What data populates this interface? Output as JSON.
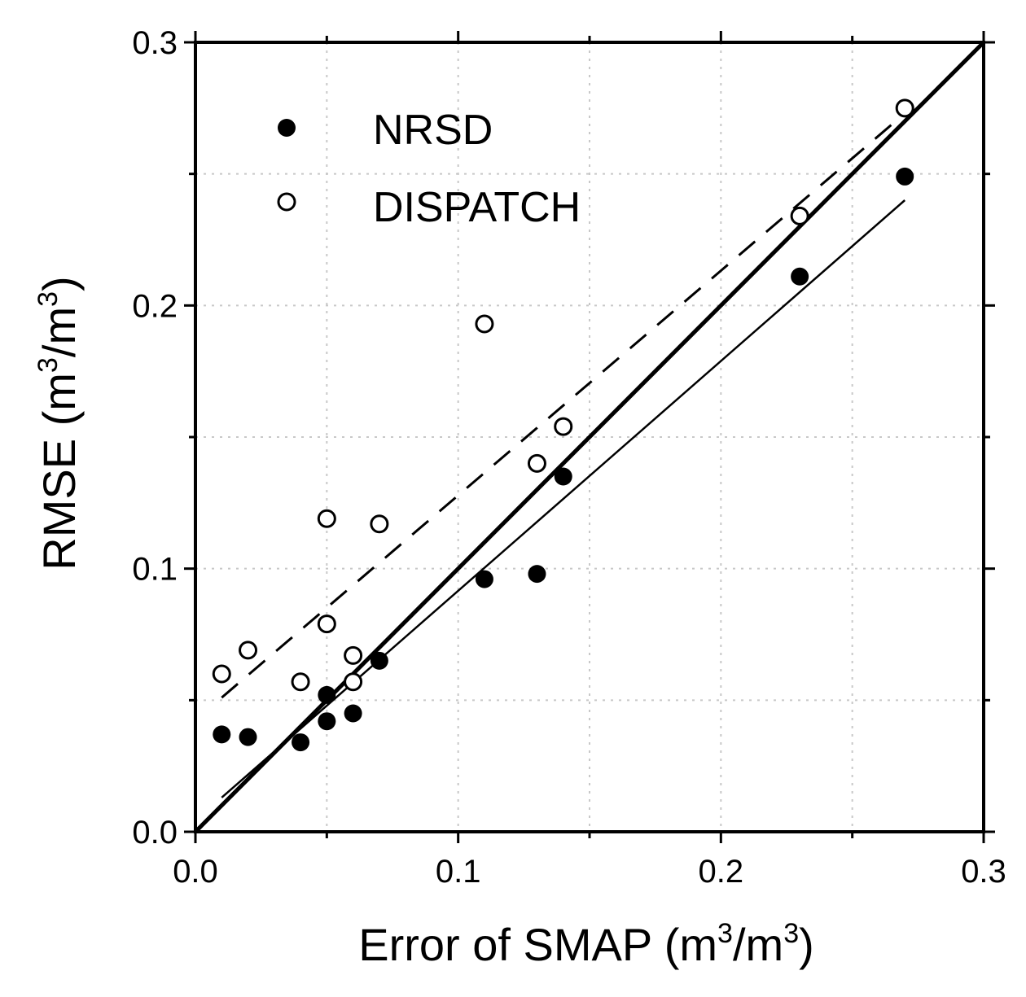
{
  "chart_data": {
    "type": "scatter",
    "xlabel_main": "Error of SMAP (m",
    "xlabel_sup1": "3",
    "xlabel_mid": "/m",
    "xlabel_sup2": "3",
    "xlabel_end": ")",
    "ylabel_main": "RMSE (m",
    "ylabel_sup1": "3",
    "ylabel_mid": "/m",
    "ylabel_sup2": "3",
    "ylabel_end": ")",
    "xlim": [
      0.0,
      0.3
    ],
    "ylim": [
      0.0,
      0.3
    ],
    "xticks": [
      "0.0",
      "0.1",
      "0.2",
      "0.3"
    ],
    "yticks": [
      "0.0",
      "0.1",
      "0.2",
      "0.3"
    ],
    "grid": "dotted",
    "legend_position": "top-left",
    "series": [
      {
        "name": "NRSD",
        "marker": "filled-circle",
        "points": [
          [
            0.01,
            0.037
          ],
          [
            0.02,
            0.036
          ],
          [
            0.04,
            0.034
          ],
          [
            0.05,
            0.042
          ],
          [
            0.05,
            0.052
          ],
          [
            0.06,
            0.045
          ],
          [
            0.07,
            0.065
          ],
          [
            0.11,
            0.096
          ],
          [
            0.13,
            0.098
          ],
          [
            0.14,
            0.135
          ],
          [
            0.23,
            0.211
          ],
          [
            0.27,
            0.249
          ]
        ],
        "fit": {
          "style": "solid-thin",
          "from": [
            0.01,
            0.013
          ],
          "to": [
            0.27,
            0.24
          ]
        }
      },
      {
        "name": "DISPATCH",
        "marker": "open-circle",
        "points": [
          [
            0.01,
            0.06
          ],
          [
            0.02,
            0.069
          ],
          [
            0.04,
            0.057
          ],
          [
            0.05,
            0.079
          ],
          [
            0.05,
            0.119
          ],
          [
            0.06,
            0.067
          ],
          [
            0.06,
            0.057
          ],
          [
            0.07,
            0.117
          ],
          [
            0.11,
            0.193
          ],
          [
            0.13,
            0.14
          ],
          [
            0.14,
            0.154
          ],
          [
            0.23,
            0.234
          ],
          [
            0.27,
            0.275
          ]
        ],
        "fit": {
          "style": "dashed",
          "from": [
            0.01,
            0.051
          ],
          "to": [
            0.27,
            0.273
          ]
        }
      }
    ],
    "reference_line": {
      "style": "solid-thick",
      "from": [
        0.0,
        0.0
      ],
      "to": [
        0.3,
        0.3
      ]
    }
  }
}
